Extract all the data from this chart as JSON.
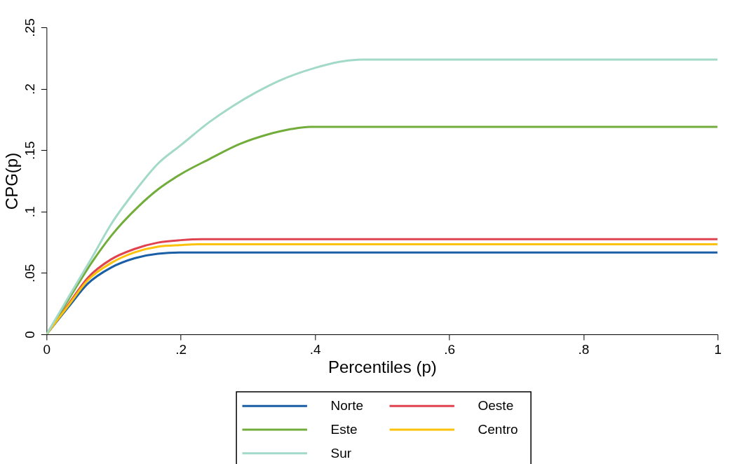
{
  "chart_data": {
    "type": "line",
    "xlabel": "Percentiles (p)",
    "ylabel": "CPG(p)",
    "xlim": [
      0,
      1
    ],
    "ylim": [
      0,
      0.25
    ],
    "xticks": [
      0,
      {
        "value": 0.2,
        "label": ".2"
      },
      {
        "value": 0.4,
        "label": ".4"
      },
      {
        "value": 0.6,
        "label": ".6"
      },
      {
        "value": 0.8,
        "label": ".8"
      },
      1
    ],
    "yticks": [
      0,
      {
        "value": 0.05,
        "label": ".05"
      },
      {
        "value": 0.1,
        "label": ".1"
      },
      {
        "value": 0.15,
        "label": ".15"
      },
      {
        "value": 0.2,
        "label": ".2"
      },
      {
        "value": 0.25,
        "label": ".25"
      }
    ],
    "grid": false,
    "legend": "bottom",
    "marker": "none",
    "line_style": "solid",
    "series": [
      {
        "name": "Norte",
        "color": "#1a5fa6",
        "x": [
          0,
          0.033,
          0.061,
          0.096,
          0.131,
          0.166,
          0.2,
          1
        ],
        "values": [
          0,
          0.0225,
          0.041,
          0.0543,
          0.0619,
          0.0657,
          0.0666,
          0.0666
        ]
      },
      {
        "name": "Oeste",
        "color": "#e0424f",
        "x": [
          0,
          0.033,
          0.061,
          0.096,
          0.131,
          0.166,
          0.2,
          0.232,
          1
        ],
        "values": [
          0,
          0.0248,
          0.0457,
          0.061,
          0.0695,
          0.0747,
          0.0767,
          0.0775,
          0.0775
        ]
      },
      {
        "name": "Este",
        "color": "#72ad3c",
        "x": [
          0,
          0.033,
          0.068,
          0.096,
          0.138,
          0.166,
          0.2,
          0.243,
          0.288,
          0.33,
          0.365,
          0.393,
          1
        ],
        "values": [
          0,
          0.0286,
          0.059,
          0.08,
          0.1047,
          0.118,
          0.1304,
          0.1428,
          0.155,
          0.1628,
          0.1672,
          0.169,
          0.169
        ]
      },
      {
        "name": "Centro",
        "color": "#fcc10a",
        "x": [
          0,
          0.033,
          0.061,
          0.096,
          0.131,
          0.166,
          0.2,
          0.225,
          1
        ],
        "values": [
          0,
          0.0238,
          0.0438,
          0.058,
          0.0667,
          0.0714,
          0.0727,
          0.0733,
          0.0733
        ]
      },
      {
        "name": "Sur",
        "color": "#a3d9c8",
        "x": [
          0,
          0.033,
          0.068,
          0.096,
          0.131,
          0.166,
          0.2,
          0.243,
          0.277,
          0.312,
          0.347,
          0.4,
          0.435,
          0.47,
          1
        ],
        "values": [
          0,
          0.0305,
          0.0628,
          0.0895,
          0.116,
          0.139,
          0.154,
          0.173,
          0.1857,
          0.197,
          0.2066,
          0.217,
          0.2218,
          0.2237,
          0.2237
        ]
      }
    ]
  }
}
